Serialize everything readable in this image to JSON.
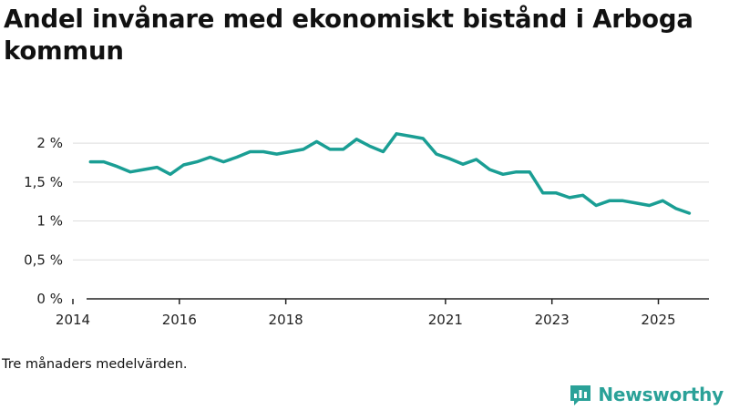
{
  "title": "Andel invånare med ekonomiskt bistånd i Arboga kommun",
  "note": "Tre månaders medelvärden.",
  "brand": {
    "name": "Newsworthy",
    "icon": "newsworthy-logo-icon"
  },
  "colors": {
    "line": "#1a9e94",
    "grid": "#dddddd",
    "axis": "#222222",
    "brand": "#2aa198"
  },
  "chart_data": {
    "type": "line",
    "title": "Andel invånare med ekonomiskt bistånd i Arboga kommun",
    "xlabel": "",
    "ylabel": "",
    "unit": "%",
    "ylim": [
      0,
      2.2
    ],
    "xlim": [
      2014.0,
      2025.95
    ],
    "y_ticks": [
      {
        "value": 0,
        "label": "0 %"
      },
      {
        "value": 0.5,
        "label": "0,5 %"
      },
      {
        "value": 1,
        "label": "1 %"
      },
      {
        "value": 1.5,
        "label": "1,5 %"
      },
      {
        "value": 2,
        "label": "2 %"
      }
    ],
    "x_ticks": [
      {
        "value": 2014.0,
        "label": "2014"
      },
      {
        "value": 2016.0,
        "label": "2016"
      },
      {
        "value": 2018.0,
        "label": "2018"
      },
      {
        "value": 2021.0,
        "label": "2021"
      },
      {
        "value": 2023.0,
        "label": "2023"
      },
      {
        "value": 2025.0,
        "label": "2025"
      }
    ],
    "series": [
      {
        "name": "Andel invånare med ekonomiskt bistånd",
        "x": [
          2014.33,
          2014.58,
          2014.83,
          2015.08,
          2015.33,
          2015.58,
          2015.83,
          2016.08,
          2016.33,
          2016.58,
          2016.83,
          2017.08,
          2017.33,
          2017.58,
          2017.83,
          2018.08,
          2018.33,
          2018.58,
          2018.83,
          2019.08,
          2019.33,
          2019.58,
          2019.83,
          2020.08,
          2020.33,
          2020.58,
          2020.83,
          2021.08,
          2021.33,
          2021.58,
          2021.83,
          2022.08,
          2022.33,
          2022.58,
          2022.83,
          2023.08,
          2023.33,
          2023.58,
          2023.83,
          2024.08,
          2024.33,
          2024.58,
          2024.83,
          2025.08,
          2025.33,
          2025.58
        ],
        "values": [
          1.76,
          1.76,
          1.7,
          1.63,
          1.66,
          1.69,
          1.6,
          1.72,
          1.76,
          1.82,
          1.76,
          1.82,
          1.89,
          1.89,
          1.86,
          1.89,
          1.92,
          2.02,
          1.92,
          1.92,
          2.05,
          1.96,
          1.89,
          2.12,
          2.09,
          2.06,
          1.86,
          1.8,
          1.73,
          1.79,
          1.66,
          1.6,
          1.63,
          1.63,
          1.36,
          1.36,
          1.3,
          1.33,
          1.2,
          1.26,
          1.26,
          1.23,
          1.2,
          1.26,
          1.16,
          1.1
        ]
      }
    ]
  }
}
